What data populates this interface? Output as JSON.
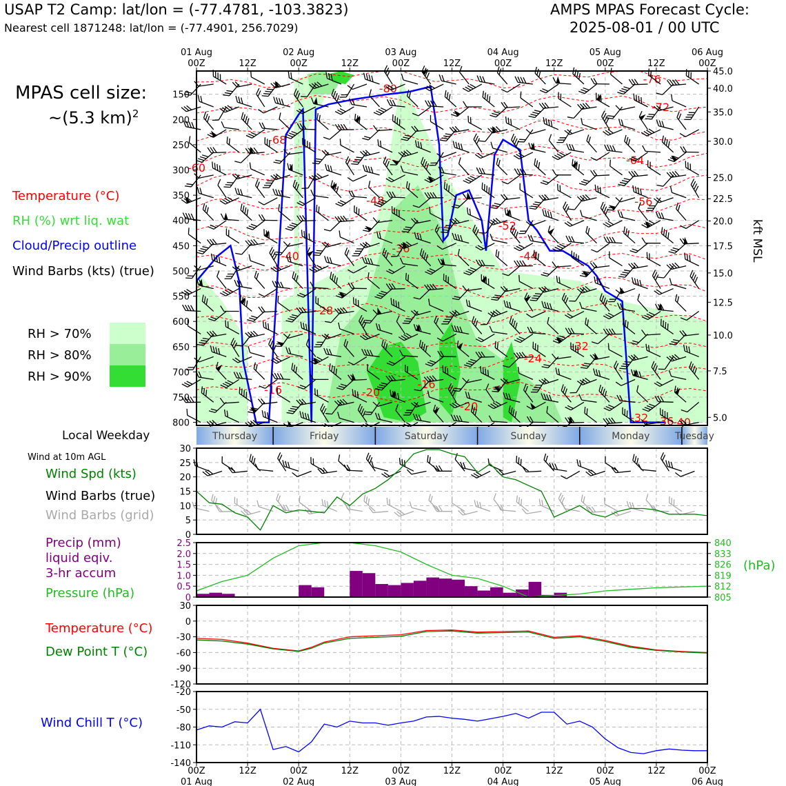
{
  "header": {
    "left_title": "USAP T2 Camp: lat/lon = (-77.4781, -103.3823)",
    "left_subtitle": "Nearest cell 1871248: lat/lon = (-77.4901, 256.7029)",
    "right_title": "AMPS MPAS Forecast Cycle:",
    "right_subtitle": "2025-08-01 / 00 UTC"
  },
  "cell_size": {
    "line1": "MPAS cell size:",
    "line2": "~(5.3 km)",
    "sup": "2"
  },
  "legend": {
    "temperature": "Temperature (°C)",
    "rh": "RH (%) wrt liq. wat",
    "cloud": "Cloud/Precip outline",
    "wind": "Wind Barbs (kts) (true)",
    "rh70": "RH > 70%",
    "rh80": "RH > 80%",
    "rh90": "RH > 90%"
  },
  "colors": {
    "temperature": "#ff0000",
    "rh_text": "#33dd33",
    "cloud": "#0000ff",
    "rh70": "#ccffcc",
    "rh80": "#99ee99",
    "rh90": "#33dd33",
    "precip": "#800080",
    "pressure": "#22bb22",
    "wind_speed": "#008000",
    "dewpoint": "#008000",
    "windchill": "#0000ff",
    "grid_barb": "#aaaaaa"
  },
  "time_axis": {
    "top_dates": [
      "01 Aug\n00Z",
      "",
      "02 Aug\n00Z",
      "",
      "03 Aug\n00Z",
      "",
      "04 Aug\n00Z",
      "",
      "05 Aug\n00Z",
      "",
      "06 Aug\n00Z"
    ],
    "top_hours": [
      "00Z",
      "12Z",
      "00Z",
      "12Z",
      "00Z",
      "12Z",
      "00Z",
      "12Z",
      "00Z",
      "12Z",
      "00Z"
    ],
    "top_days": [
      "01 Aug",
      "",
      "02 Aug",
      "",
      "03 Aug",
      "",
      "04 Aug",
      "",
      "05 Aug",
      "",
      "06 Aug"
    ],
    "bottom_hours": [
      "00Z",
      "12Z",
      "00Z",
      "12Z",
      "00Z",
      "12Z",
      "00Z",
      "12Z",
      "00Z",
      "12Z",
      "00Z"
    ],
    "bottom_days": [
      "01 Aug",
      "",
      "02 Aug",
      "",
      "03 Aug",
      "",
      "04 Aug",
      "",
      "05 Aug",
      "",
      "06 Aug"
    ]
  },
  "weekday_bar": {
    "label": "Local Weekday",
    "days": [
      "Thursday",
      "Friday",
      "Saturday",
      "Sunday",
      "Monday",
      "Tuesday"
    ]
  },
  "labels": {
    "wind_at": "Wind at 10m AGL",
    "wind_spd": "Wind Spd (kts)",
    "wind_barbs_true": "Wind Barbs (true)",
    "wind_barbs_grid": "Wind Barbs (grid)",
    "precip1": "Precip (mm)",
    "precip2": "liquid eqiv.",
    "precip3": "3-hr accum",
    "pressure": "Pressure (hPa)",
    "temp": "Temperature (°C)",
    "dew": "Dew Point T (°C)",
    "windchill": "Wind Chill T (°C)",
    "kft": "kft MSL",
    "hpa_unit": "(hPa)"
  },
  "chart_data": [
    {
      "type": "heatmap",
      "name": "cross-section",
      "y_left_ticks": [
        "150",
        "200",
        "250",
        "300",
        "350",
        "400",
        "450",
        "500",
        "550",
        "600",
        "650",
        "700",
        "750",
        "800"
      ],
      "y_left_values": [
        150,
        200,
        250,
        300,
        350,
        400,
        450,
        500,
        550,
        600,
        650,
        700,
        750,
        800
      ],
      "y_right_ticks": [
        "45.0",
        "40.0",
        "35.0",
        "30.0",
        "25.0",
        "22.5",
        "20.0",
        "17.5",
        "15.0",
        "12.5",
        "10.0",
        "7.5",
        "5.0"
      ],
      "y_right_pressure": [
        104,
        138,
        185,
        243,
        315,
        357,
        401,
        450,
        504,
        562,
        627,
        698,
        790
      ],
      "ylim": [
        104,
        806
      ],
      "temperature_labels": [
        {
          "text": "-76",
          "x": 107,
          "p": 120
        },
        {
          "text": "-72",
          "x": 109,
          "p": 175
        },
        {
          "text": "-80",
          "x": 45,
          "p": 138
        },
        {
          "text": "-68",
          "x": 19,
          "p": 240
        },
        {
          "text": "-64",
          "x": 103,
          "p": 280
        },
        {
          "text": "-60",
          "x": 0,
          "p": 295
        },
        {
          "text": "-56",
          "x": 105,
          "p": 362
        },
        {
          "text": "-48",
          "x": 42,
          "p": 360
        },
        {
          "text": "-52",
          "x": 73,
          "p": 410
        },
        {
          "text": "-40",
          "x": 22,
          "p": 470
        },
        {
          "text": "-44",
          "x": 78,
          "p": 470
        },
        {
          "text": "-36",
          "x": 48,
          "p": 455
        },
        {
          "text": "-28",
          "x": 30,
          "p": 578
        },
        {
          "text": "-32",
          "x": 90,
          "p": 648
        },
        {
          "text": "-24",
          "x": 79,
          "p": 673
        },
        {
          "text": "-16",
          "x": 54,
          "p": 724
        },
        {
          "text": "-20",
          "x": 41,
          "p": 740
        },
        {
          "text": "-20",
          "x": 64,
          "p": 768
        },
        {
          "text": "-16",
          "x": 18,
          "p": 735
        },
        {
          "text": "-32",
          "x": 104,
          "p": 790
        },
        {
          "text": "-36",
          "x": 110,
          "p": 797
        },
        {
          "text": "-40",
          "x": 114,
          "p": 799
        }
      ],
      "cloud_outline_x_hours": [
        0,
        5,
        8,
        10,
        10.5,
        11,
        14,
        17,
        21,
        24,
        25,
        27,
        28,
        31,
        34,
        37,
        41,
        45,
        50,
        55,
        57,
        58,
        59,
        61,
        64,
        67,
        68,
        70,
        72,
        74,
        76,
        78,
        80,
        83,
        86,
        88,
        90,
        92,
        94,
        96,
        100,
        102,
        106,
        109,
        110
      ],
      "cloud_outline_p": [
        520,
        470,
        450,
        520,
        600,
        680,
        800,
        800,
        230,
        190,
        180,
        800,
        180,
        170,
        165,
        160,
        155,
        150,
        145,
        135,
        250,
        440,
        430,
        350,
        340,
        400,
        460,
        270,
        240,
        250,
        260,
        400,
        420,
        460,
        460,
        470,
        480,
        490,
        510,
        540,
        560,
        800,
        800,
        800,
        800
      ]
    },
    {
      "type": "line",
      "name": "wind-speed",
      "ylabel": "",
      "ylim": [
        0,
        30
      ],
      "y_ticks": [
        "0",
        "5",
        "10",
        "15",
        "20",
        "25",
        "30"
      ],
      "x_hours": [
        0,
        3,
        6,
        9,
        12,
        15,
        18,
        21,
        24,
        27,
        30,
        33,
        36,
        39,
        42,
        45,
        48,
        51,
        54,
        57,
        60,
        63,
        66,
        69,
        72,
        75,
        78,
        81,
        84,
        87,
        90,
        93,
        96,
        99,
        102,
        105,
        108,
        111,
        114,
        117,
        120
      ],
      "values": [
        15,
        11,
        10.5,
        7.5,
        6,
        1.5,
        10,
        7.5,
        8.5,
        8,
        7.5,
        13,
        10,
        14,
        16,
        19,
        23,
        28,
        29.5,
        29.5,
        28,
        27,
        21.5,
        24.5,
        20,
        19,
        17,
        15,
        6,
        8,
        10,
        7,
        6,
        8,
        9,
        9,
        8.5,
        7,
        7,
        7,
        6.5
      ],
      "grid_values": [
        9,
        9,
        8.5,
        7.5,
        6,
        1.5,
        10,
        7.5,
        8.5,
        8,
        7.5,
        13,
        10,
        14,
        16,
        19,
        23,
        28,
        29.5,
        29.5,
        28,
        27,
        21.5,
        24.5,
        20,
        19,
        17,
        15,
        6,
        8,
        10,
        7,
        6,
        8,
        9,
        9,
        8.5,
        7,
        7,
        7,
        6.5
      ]
    },
    {
      "type": "bar",
      "name": "precip-and-pressure",
      "ylim": [
        0,
        2.5
      ],
      "y_ticks": [
        "0",
        "0.5",
        "1.0",
        "1.5",
        "2.0",
        "2.5"
      ],
      "y2_ticks": [
        "805",
        "812",
        "819",
        "826",
        "833",
        "840"
      ],
      "y2lim": [
        805,
        840
      ],
      "precip_x_hours": [
        3,
        6,
        9,
        27,
        30,
        39,
        42,
        45,
        48,
        51,
        54,
        57,
        60,
        63,
        66,
        69,
        72,
        75,
        78,
        81,
        84,
        87
      ],
      "precip_values": [
        0.15,
        0.2,
        0.15,
        0.55,
        0.45,
        1.2,
        1.1,
        0.6,
        0.55,
        0.65,
        0.75,
        0.9,
        0.85,
        0.8,
        0.5,
        0.3,
        0.45,
        0.2,
        0.35,
        0.7,
        0.1,
        0.2
      ],
      "pressure_x_hours": [
        0,
        6,
        12,
        18,
        24,
        30,
        36,
        42,
        48,
        54,
        60,
        66,
        72,
        78,
        84,
        90,
        96,
        102,
        108,
        114,
        120
      ],
      "pressure_values": [
        809,
        815,
        819,
        830,
        838,
        840,
        840,
        838,
        834,
        826,
        819,
        817,
        812,
        805,
        806,
        807,
        809,
        810,
        811,
        811.5,
        812
      ]
    },
    {
      "type": "line",
      "name": "temperature-dewpoint",
      "ylim": [
        -120,
        30
      ],
      "y_ticks": [
        "-120",
        "-90",
        "-60",
        "-30",
        "0",
        "30"
      ],
      "x_hours": [
        0,
        6,
        12,
        18,
        24,
        27,
        30,
        36,
        42,
        48,
        54,
        60,
        66,
        72,
        78,
        84,
        90,
        96,
        102,
        108,
        114,
        120
      ],
      "temperature": [
        -33,
        -35,
        -42,
        -52,
        -57,
        -50,
        -40,
        -30,
        -28,
        -26,
        -18,
        -17,
        -21,
        -20,
        -19,
        -31,
        -28,
        -37,
        -48,
        -55,
        -58,
        -60
      ],
      "dewpoint": [
        -36,
        -38,
        -44,
        -53,
        -58,
        -52,
        -42,
        -33,
        -31,
        -29,
        -20,
        -19,
        -23,
        -22,
        -21,
        -33,
        -30,
        -39,
        -50,
        -56,
        -59,
        -61
      ]
    },
    {
      "type": "line",
      "name": "wind-chill",
      "ylim": [
        -140,
        -20
      ],
      "y_ticks": [
        "-140",
        "-110",
        "-80",
        "-50",
        "-20"
      ],
      "x_hours": [
        0,
        3,
        6,
        9,
        12,
        15,
        18,
        21,
        24,
        27,
        30,
        33,
        36,
        39,
        42,
        45,
        48,
        51,
        54,
        57,
        60,
        63,
        66,
        69,
        72,
        75,
        78,
        81,
        84,
        87,
        90,
        93,
        96,
        99,
        102,
        105,
        108,
        111,
        114,
        117,
        120
      ],
      "values": [
        -85,
        -78,
        -80,
        -71,
        -73,
        -50,
        -118,
        -113,
        -122,
        -105,
        -75,
        -80,
        -70,
        -73,
        -73,
        -77,
        -73,
        -70,
        -63,
        -62,
        -65,
        -67,
        -70,
        -66,
        -62,
        -57,
        -65,
        -55,
        -55,
        -75,
        -70,
        -80,
        -100,
        -115,
        -123,
        -125,
        -120,
        -117,
        -119,
        -120,
        -120
      ]
    }
  ]
}
